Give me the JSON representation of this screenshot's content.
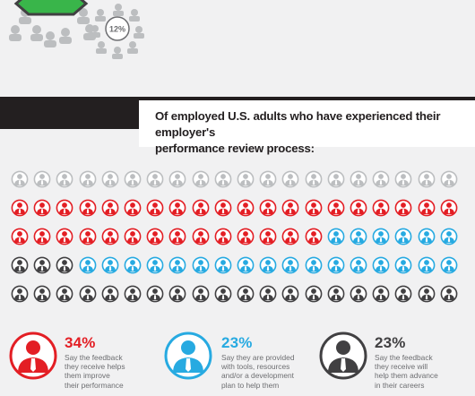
{
  "top_badge": {
    "value": "12%",
    "color": "#6d6e71"
  },
  "question": {
    "line1": "Of employed U.S. adults who have experienced their employer's",
    "line2": "performance review process:"
  },
  "colors": {
    "red": "#e31e24",
    "blue": "#27aae1",
    "dark": "#414042",
    "gray": "#bcbec0",
    "green": "#39b54a"
  },
  "grid_rows": [
    {
      "gray": 20
    },
    {
      "red": 20
    },
    {
      "red": 14,
      "blue": 6
    },
    {
      "dark": 3,
      "blue": 17
    },
    {
      "dark": 20
    }
  ],
  "stats": [
    {
      "percent": "34%",
      "color": "#e31e24",
      "lines": [
        "Say the feedback",
        "they receive helps",
        "them improve",
        "their performance"
      ]
    },
    {
      "percent": "23%",
      "color": "#27aae1",
      "lines": [
        "Say they are provided",
        "with tools, resources",
        "and/or a development",
        "plan to help them"
      ]
    },
    {
      "percent": "23%",
      "color": "#414042",
      "lines": [
        "Say the feedback",
        "they receive will",
        "help them advance",
        "in their careers"
      ]
    }
  ]
}
